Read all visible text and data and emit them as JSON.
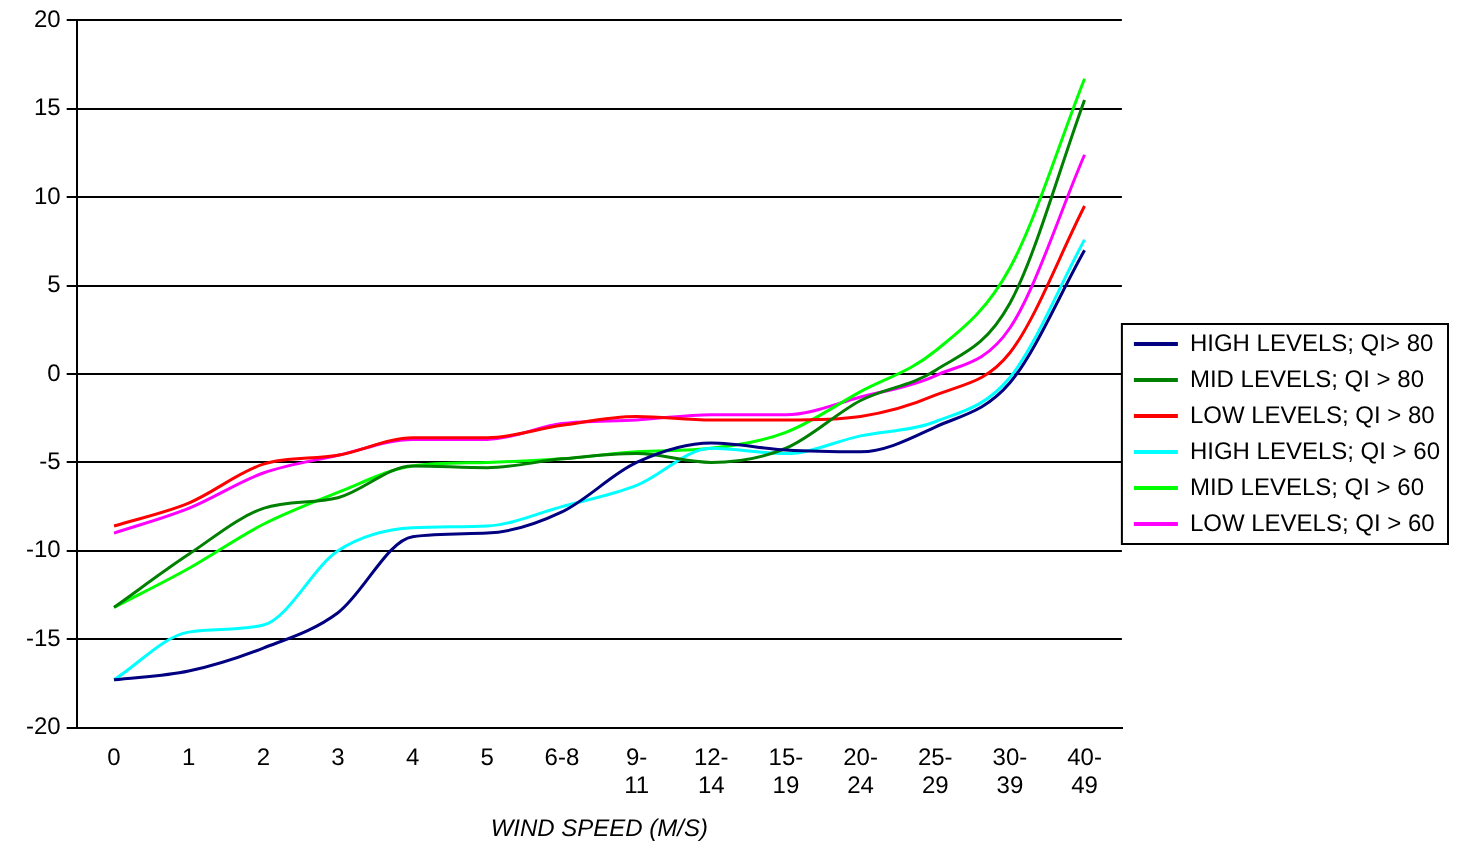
{
  "chart_data": {
    "type": "line",
    "xlabel": "WIND SPEED (M/S)",
    "categories": [
      "0",
      "1",
      "2",
      "3",
      "4",
      "5",
      "6-8",
      "9-11",
      "12-14",
      "15-19",
      "20-24",
      "25-29",
      "30-39",
      "40-49"
    ],
    "ylim": [
      -20,
      20
    ],
    "yticks": [
      -20,
      -15,
      -10,
      -5,
      0,
      5,
      10,
      15,
      20
    ],
    "grid": "y",
    "legend": "right",
    "marker": "none",
    "line_style": "solid",
    "series": [
      {
        "name": "HIGH LEVELS; QI> 80",
        "color": "#000080",
        "values": [
          -17.3,
          -16.8,
          -15.5,
          -13.5,
          -9.2,
          -9.0,
          -7.8,
          -5.0,
          -3.9,
          -4.3,
          -4.4,
          -3.0,
          -0.5,
          7.0
        ]
      },
      {
        "name": "MID LEVELS; QI > 80",
        "color": "#008000",
        "values": [
          -13.2,
          -10.2,
          -7.6,
          -7.0,
          -5.2,
          -5.3,
          -4.8,
          -4.5,
          -5.0,
          -4.2,
          -1.5,
          0.2,
          4.0,
          15.5
        ]
      },
      {
        "name": "LOW LEVELS; QI > 80",
        "color": "#ff0000",
        "values": [
          -8.6,
          -7.3,
          -5.1,
          -4.6,
          -3.6,
          -3.6,
          -2.9,
          -2.4,
          -2.6,
          -2.6,
          -2.4,
          -1.2,
          1.2,
          9.5
        ]
      },
      {
        "name": "HIGH LEVELS; QI > 60",
        "color": "#00ffff",
        "values": [
          -17.3,
          -14.6,
          -14.2,
          -10.0,
          -8.7,
          -8.6,
          -7.5,
          -6.3,
          -4.2,
          -4.5,
          -3.5,
          -2.7,
          -0.2,
          7.6
        ]
      },
      {
        "name": "MID LEVELS; QI > 60",
        "color": "#00ff00",
        "values": [
          -13.2,
          -11.0,
          -8.5,
          -6.7,
          -5.2,
          -5.0,
          -4.8,
          -4.4,
          -4.2,
          -3.3,
          -1.0,
          1.3,
          6.0,
          16.7
        ]
      },
      {
        "name": "LOW LEVELS; QI > 60",
        "color": "#ff00ff",
        "values": [
          -9.0,
          -7.6,
          -5.6,
          -4.6,
          -3.7,
          -3.7,
          -2.8,
          -2.6,
          -2.3,
          -2.3,
          -1.3,
          -0.1,
          2.6,
          12.4
        ]
      }
    ]
  }
}
